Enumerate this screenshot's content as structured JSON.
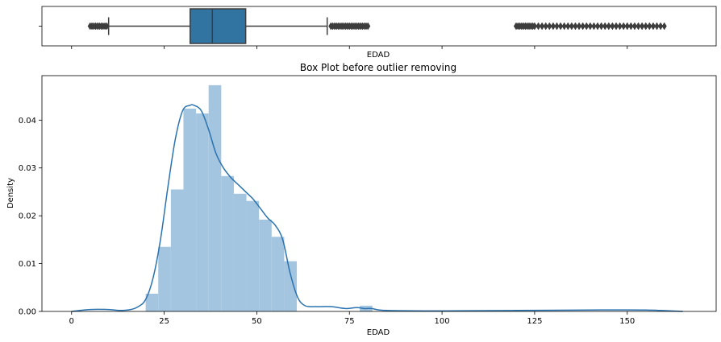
{
  "chart_data": [
    {
      "type": "box",
      "xlabel": "EDAD",
      "xlim": [
        -8,
        174
      ],
      "box": {
        "q1": 32,
        "median": 38,
        "q3": 47,
        "whisker_low": 10,
        "whisker_high": 69
      },
      "outliers": [
        5,
        5.5,
        6,
        6.5,
        7,
        7.5,
        8,
        8.5,
        9,
        9.5,
        70,
        70.5,
        71,
        71.5,
        72,
        72.5,
        73,
        73.5,
        74,
        74.5,
        75,
        75.5,
        76,
        76.5,
        77,
        77.5,
        78,
        78.5,
        79,
        79.5,
        80,
        120,
        120.5,
        121,
        121.5,
        122,
        122.5,
        123,
        123.5,
        124,
        124.5,
        125,
        126,
        127,
        128,
        129,
        130,
        131,
        132,
        133,
        134,
        135,
        136,
        137,
        138,
        139,
        140,
        141,
        142,
        143,
        144,
        145,
        146,
        147,
        148,
        149,
        150,
        151,
        152,
        153,
        154,
        155,
        156,
        157,
        158,
        159,
        160
      ],
      "color": "#3274a1"
    },
    {
      "type": "histogram",
      "title": "Box Plot before outlier removing",
      "xlabel": "EDAD",
      "ylabel": "Density",
      "xlim": [
        -8,
        174
      ],
      "ylim": [
        0,
        0.0493
      ],
      "xticks": [
        0,
        25,
        50,
        75,
        100,
        125,
        150
      ],
      "xtick_labels": [
        "0",
        "25",
        "50",
        "75",
        "100",
        "125",
        "150"
      ],
      "yticks": [
        0.0,
        0.01,
        0.02,
        0.03,
        0.04
      ],
      "ytick_labels": [
        "0.00",
        "0.01",
        "0.02",
        "0.03",
        "0.04"
      ],
      "bins": [
        {
          "x0": 20,
          "x1": 23.4,
          "density": 0.0037
        },
        {
          "x0": 23.4,
          "x1": 26.8,
          "density": 0.0135
        },
        {
          "x0": 26.8,
          "x1": 30.2,
          "density": 0.0255
        },
        {
          "x0": 30.2,
          "x1": 33.6,
          "density": 0.0424
        },
        {
          "x0": 33.6,
          "x1": 37,
          "density": 0.0414
        },
        {
          "x0": 37,
          "x1": 40.4,
          "density": 0.0473
        },
        {
          "x0": 40.4,
          "x1": 43.8,
          "density": 0.0283
        },
        {
          "x0": 43.8,
          "x1": 47.2,
          "density": 0.0246
        },
        {
          "x0": 47.2,
          "x1": 50.6,
          "density": 0.0231
        },
        {
          "x0": 50.6,
          "x1": 54,
          "density": 0.0192
        },
        {
          "x0": 54,
          "x1": 57.4,
          "density": 0.0156
        },
        {
          "x0": 57.4,
          "x1": 60.8,
          "density": 0.0105
        },
        {
          "x0": 77.8,
          "x1": 81.2,
          "density": 0.0012
        }
      ],
      "kde": {
        "x": [
          0,
          5,
          10,
          13,
          16,
          18,
          20,
          22,
          24,
          26,
          28,
          30,
          32,
          33,
          35,
          37,
          39,
          41,
          43,
          45,
          47,
          49,
          51,
          53,
          55,
          57,
          59,
          61,
          63,
          66,
          70,
          74,
          77,
          79,
          81,
          85,
          100,
          120,
          140,
          155,
          165
        ],
        "y": [
          0.0,
          0.0004,
          0.0004,
          0.0002,
          0.0004,
          0.001,
          0.0025,
          0.007,
          0.015,
          0.026,
          0.036,
          0.042,
          0.0431,
          0.0431,
          0.042,
          0.038,
          0.033,
          0.03,
          0.028,
          0.0265,
          0.025,
          0.0235,
          0.0215,
          0.0195,
          0.018,
          0.015,
          0.008,
          0.003,
          0.0012,
          0.001,
          0.001,
          0.0006,
          0.0008,
          0.0006,
          0.0006,
          0.0002,
          0.0001,
          0.0002,
          0.0003,
          0.0003,
          0.0
        ]
      },
      "bar_color": "#a3c5e0",
      "line_color": "#2a73b0"
    }
  ]
}
